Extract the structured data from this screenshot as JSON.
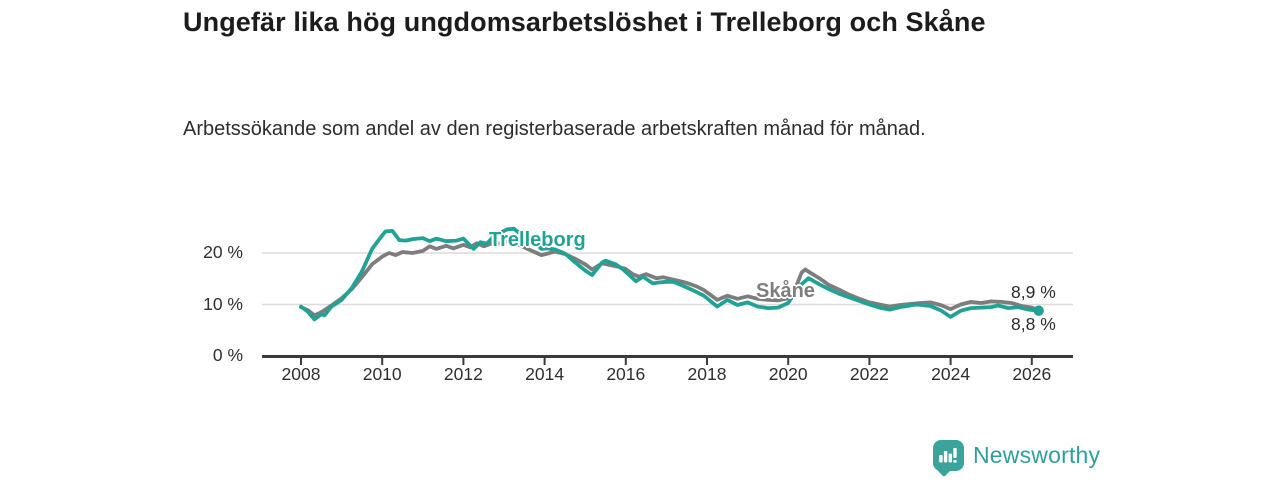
{
  "header": {
    "title": "Ungefär lika hög ungdomsarbetslöshet i Trelleborg och Skåne",
    "subtitle": "Arbetssökande som andel av den registerbaserade arbetskraften månad för månad."
  },
  "colors": {
    "trelleborg": "#22a295",
    "skane": "#7d7d7d",
    "grid": "#dcdcdc",
    "axis": "#3a3a3a",
    "text": "#2f2f2f",
    "brand_teal": "#3aa39b",
    "brand_text": "#2f9f99"
  },
  "chart_data": {
    "type": "line",
    "title": "Ungefär lika hög ungdomsarbetslöshet i Trelleborg och Skåne",
    "subtitle": "Arbetssökande som andel av den registerbaserade arbetskraften månad för månad.",
    "xlabel": "",
    "ylabel": "",
    "grid": "horizontal",
    "legend_position": "inline-labels",
    "x_axis": {
      "tick_years": [
        2008,
        2010,
        2012,
        2014,
        2016,
        2018,
        2020,
        2022,
        2024,
        2026
      ],
      "tick_labels": [
        "2008",
        "2010",
        "2012",
        "2014",
        "2016",
        "2018",
        "2020",
        "2022",
        "2024",
        "2026"
      ],
      "range": [
        2007.05,
        2027.0
      ]
    },
    "y_axis": {
      "ticks": [
        {
          "value": 0,
          "label": "0 %"
        },
        {
          "value": 10,
          "label": "10 %"
        },
        {
          "value": 20,
          "label": "20 %"
        }
      ],
      "range": [
        0,
        27
      ],
      "unit": "%"
    },
    "series": [
      {
        "name": "Trelleborg",
        "label_text": "Trelleborg",
        "end_label": "8,8 %",
        "end_value": 8.8,
        "color": "#22a295",
        "points": [
          [
            2008.0,
            9.6
          ],
          [
            2008.17,
            8.6
          ],
          [
            2008.33,
            7.1
          ],
          [
            2008.5,
            8.1
          ],
          [
            2008.58,
            7.9
          ],
          [
            2008.75,
            9.6
          ],
          [
            2009.0,
            10.9
          ],
          [
            2009.25,
            13.2
          ],
          [
            2009.5,
            16.4
          ],
          [
            2009.75,
            20.8
          ],
          [
            2009.92,
            22.6
          ],
          [
            2010.08,
            24.2
          ],
          [
            2010.25,
            24.3
          ],
          [
            2010.42,
            22.5
          ],
          [
            2010.58,
            22.4
          ],
          [
            2010.75,
            22.7
          ],
          [
            2011.0,
            22.9
          ],
          [
            2011.17,
            22.3
          ],
          [
            2011.33,
            22.8
          ],
          [
            2011.58,
            22.3
          ],
          [
            2011.83,
            22.4
          ],
          [
            2012.0,
            22.8
          ],
          [
            2012.25,
            20.8
          ],
          [
            2012.42,
            22.1
          ],
          [
            2012.58,
            21.8
          ],
          [
            2012.75,
            23.3
          ],
          [
            2013.0,
            24.3
          ],
          [
            2013.08,
            24.6
          ],
          [
            2013.25,
            24.7
          ],
          [
            2013.42,
            23.6
          ],
          [
            2013.58,
            23.7
          ],
          [
            2013.75,
            22.2
          ],
          [
            2013.92,
            20.8
          ],
          [
            2014.08,
            20.9
          ],
          [
            2014.25,
            20.7
          ],
          [
            2014.5,
            19.9
          ],
          [
            2014.75,
            18.2
          ],
          [
            2015.0,
            16.6
          ],
          [
            2015.17,
            15.7
          ],
          [
            2015.42,
            18.2
          ],
          [
            2015.5,
            18.5
          ],
          [
            2015.75,
            17.8
          ],
          [
            2015.92,
            16.9
          ],
          [
            2016.17,
            15.1
          ],
          [
            2016.25,
            14.5
          ],
          [
            2016.42,
            15.4
          ],
          [
            2016.67,
            14.1
          ],
          [
            2016.83,
            14.3
          ],
          [
            2017.0,
            14.4
          ],
          [
            2017.17,
            14.4
          ],
          [
            2017.42,
            13.6
          ],
          [
            2017.67,
            12.7
          ],
          [
            2017.92,
            11.7
          ],
          [
            2018.08,
            10.7
          ],
          [
            2018.25,
            9.6
          ],
          [
            2018.5,
            10.9
          ],
          [
            2018.75,
            9.9
          ],
          [
            2019.0,
            10.4
          ],
          [
            2019.25,
            9.6
          ],
          [
            2019.5,
            9.3
          ],
          [
            2019.75,
            9.4
          ],
          [
            2020.0,
            10.3
          ],
          [
            2020.25,
            13.4
          ],
          [
            2020.5,
            15.1
          ],
          [
            2020.75,
            14.0
          ],
          [
            2021.0,
            13.0
          ],
          [
            2021.25,
            12.1
          ],
          [
            2021.5,
            11.4
          ],
          [
            2021.75,
            10.7
          ],
          [
            2022.0,
            10.0
          ],
          [
            2022.25,
            9.4
          ],
          [
            2022.5,
            9.0
          ],
          [
            2022.75,
            9.5
          ],
          [
            2023.0,
            9.8
          ],
          [
            2023.17,
            10.0
          ],
          [
            2023.5,
            9.7
          ],
          [
            2023.75,
            8.9
          ],
          [
            2024.0,
            7.6
          ],
          [
            2024.25,
            8.8
          ],
          [
            2024.5,
            9.3
          ],
          [
            2024.75,
            9.4
          ],
          [
            2025.0,
            9.5
          ],
          [
            2025.17,
            9.8
          ],
          [
            2025.42,
            9.3
          ],
          [
            2025.67,
            9.5
          ],
          [
            2025.92,
            9.0
          ],
          [
            2026.17,
            8.8
          ]
        ]
      },
      {
        "name": "Skåne",
        "label_text": "Skåne",
        "end_label": "8,9 %",
        "end_value": 8.9,
        "color": "#7d7d7d",
        "points": [
          [
            2008.0,
            9.5
          ],
          [
            2008.17,
            8.9
          ],
          [
            2008.33,
            7.9
          ],
          [
            2008.5,
            8.5
          ],
          [
            2008.75,
            9.8
          ],
          [
            2009.0,
            11.2
          ],
          [
            2009.25,
            13.0
          ],
          [
            2009.5,
            15.3
          ],
          [
            2009.75,
            17.8
          ],
          [
            2010.0,
            19.3
          ],
          [
            2010.17,
            20.0
          ],
          [
            2010.33,
            19.6
          ],
          [
            2010.5,
            20.2
          ],
          [
            2010.75,
            20.0
          ],
          [
            2011.0,
            20.4
          ],
          [
            2011.17,
            21.3
          ],
          [
            2011.33,
            20.8
          ],
          [
            2011.58,
            21.4
          ],
          [
            2011.75,
            20.9
          ],
          [
            2012.0,
            21.6
          ],
          [
            2012.17,
            21.1
          ],
          [
            2012.33,
            21.9
          ],
          [
            2012.5,
            21.3
          ],
          [
            2012.75,
            22.0
          ],
          [
            2012.92,
            21.8
          ],
          [
            2013.08,
            22.4
          ],
          [
            2013.25,
            22.1
          ],
          [
            2013.42,
            21.4
          ],
          [
            2013.58,
            20.8
          ],
          [
            2013.75,
            20.2
          ],
          [
            2013.92,
            19.6
          ],
          [
            2014.08,
            19.9
          ],
          [
            2014.25,
            20.3
          ],
          [
            2014.5,
            19.8
          ],
          [
            2014.75,
            18.9
          ],
          [
            2015.0,
            17.8
          ],
          [
            2015.17,
            16.8
          ],
          [
            2015.42,
            18.0
          ],
          [
            2015.58,
            17.7
          ],
          [
            2015.83,
            17.3
          ],
          [
            2016.0,
            16.9
          ],
          [
            2016.17,
            15.9
          ],
          [
            2016.33,
            15.4
          ],
          [
            2016.5,
            15.9
          ],
          [
            2016.75,
            15.1
          ],
          [
            2016.92,
            15.3
          ],
          [
            2017.08,
            15.0
          ],
          [
            2017.25,
            14.7
          ],
          [
            2017.5,
            14.2
          ],
          [
            2017.75,
            13.5
          ],
          [
            2017.92,
            12.8
          ],
          [
            2018.08,
            11.9
          ],
          [
            2018.25,
            10.9
          ],
          [
            2018.5,
            11.7
          ],
          [
            2018.75,
            11.1
          ],
          [
            2019.0,
            11.6
          ],
          [
            2019.25,
            11.1
          ],
          [
            2019.5,
            10.9
          ],
          [
            2019.75,
            10.8
          ],
          [
            2020.0,
            11.2
          ],
          [
            2020.17,
            13.0
          ],
          [
            2020.33,
            16.2
          ],
          [
            2020.42,
            16.8
          ],
          [
            2020.58,
            16.0
          ],
          [
            2020.75,
            15.2
          ],
          [
            2021.0,
            13.8
          ],
          [
            2021.25,
            12.9
          ],
          [
            2021.5,
            11.9
          ],
          [
            2021.75,
            11.1
          ],
          [
            2022.0,
            10.4
          ],
          [
            2022.25,
            10.0
          ],
          [
            2022.5,
            9.6
          ],
          [
            2022.75,
            9.9
          ],
          [
            2023.0,
            10.1
          ],
          [
            2023.25,
            10.3
          ],
          [
            2023.5,
            10.4
          ],
          [
            2023.75,
            9.9
          ],
          [
            2024.0,
            9.1
          ],
          [
            2024.25,
            10.0
          ],
          [
            2024.5,
            10.5
          ],
          [
            2024.75,
            10.3
          ],
          [
            2025.0,
            10.6
          ],
          [
            2025.25,
            10.5
          ],
          [
            2025.5,
            10.3
          ],
          [
            2025.75,
            9.7
          ],
          [
            2026.0,
            9.4
          ],
          [
            2026.17,
            8.9
          ]
        ]
      }
    ]
  },
  "footer": {
    "brand": "Newsworthy",
    "logo_icon": "bar-chart-speech-bubble-icon"
  }
}
